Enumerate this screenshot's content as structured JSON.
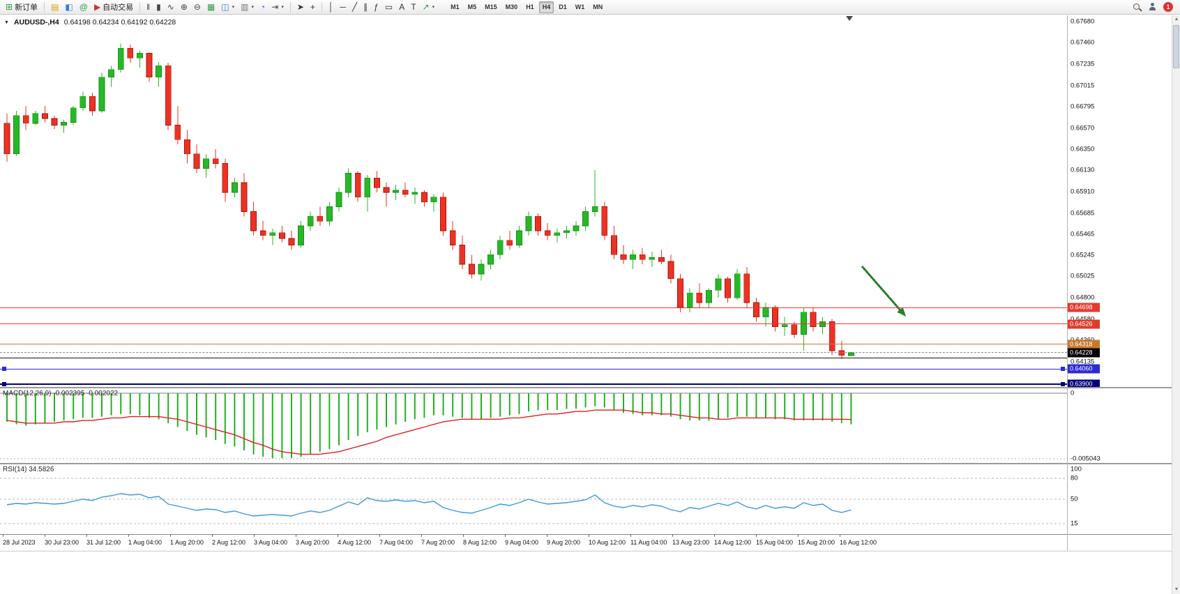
{
  "toolbar": {
    "badge_count": "1",
    "timeframes": [
      "M1",
      "M5",
      "M15",
      "M30",
      "H1",
      "H4",
      "D1",
      "W1",
      "MN"
    ],
    "active_timeframe": "H4",
    "buttons": [
      {
        "id": "new-order",
        "icon": "new-order-icon",
        "glyph": "⊞",
        "color": "#2f9e44",
        "label": "新订单"
      },
      {
        "sep": true
      },
      {
        "id": "market-watch",
        "icon": "market-watch-icon",
        "glyph": "▤",
        "color": "#d9a400"
      },
      {
        "id": "data-window",
        "icon": "data-window-icon",
        "glyph": "◧",
        "color": "#3a7bd5"
      },
      {
        "id": "navigator",
        "icon": "navigator-icon",
        "glyph": "@",
        "color": "#2f9e44"
      },
      {
        "id": "auto-trading",
        "icon": "auto-trading-icon",
        "glyph": "▶",
        "color": "#cc3333",
        "label": "自动交易"
      },
      {
        "sep": true
      },
      {
        "id": "bar-chart",
        "icon": "bar-chart-icon",
        "glyph": "‖",
        "color": "#444"
      },
      {
        "id": "candle-chart",
        "icon": "candlestick-chart-icon",
        "glyph": "▮",
        "color": "#444"
      },
      {
        "id": "line-chart",
        "icon": "line-chart-icon",
        "glyph": "∿",
        "color": "#444"
      },
      {
        "id": "zoom-in",
        "icon": "zoom-in-icon",
        "glyph": "⊕",
        "color": "#444"
      },
      {
        "id": "zoom-out",
        "icon": "zoom-out-icon",
        "glyph": "⊖",
        "color": "#444"
      },
      {
        "id": "tile-windows",
        "icon": "tile-windows-icon",
        "glyph": "▦",
        "color": "#2f9e44"
      },
      {
        "id": "new-chart",
        "icon": "new-chart-icon",
        "glyph": "◫",
        "color": "#3a7bd5",
        "dropdown": true
      },
      {
        "id": "profiles",
        "icon": "profiles-icon",
        "glyph": "▥",
        "color": "#777",
        "dropdown": true
      },
      {
        "id": "period-clock",
        "icon": "clock-icon",
        "glyph": "◔",
        "color": "#3a7bd5"
      },
      {
        "id": "chart-shift",
        "icon": "chart-shift-icon",
        "glyph": "⇥",
        "color": "#444",
        "dropdown": true
      },
      {
        "sep": true
      },
      {
        "id": "cursor",
        "icon": "cursor-arrow-icon",
        "glyph": "➤",
        "color": "#333"
      },
      {
        "id": "crosshair",
        "icon": "crosshair-icon",
        "glyph": "+",
        "color": "#333"
      },
      {
        "sep": true
      },
      {
        "id": "vertical-line",
        "icon": "vertical-line-icon",
        "glyph": "│",
        "color": "#333"
      },
      {
        "id": "horizontal-line",
        "icon": "horizontal-line-icon",
        "glyph": "─",
        "color": "#333"
      },
      {
        "id": "trendline",
        "icon": "trendline-icon",
        "glyph": "╱",
        "color": "#333"
      },
      {
        "id": "channel",
        "icon": "equidistant-channel-icon",
        "glyph": "∥",
        "color": "#333"
      },
      {
        "id": "fibonacci",
        "icon": "fibonacci-icon",
        "glyph": "ƒ",
        "color": "#333"
      },
      {
        "id": "shapes",
        "icon": "shapes-icon",
        "glyph": "▭",
        "color": "#333"
      },
      {
        "id": "text",
        "icon": "text-icon",
        "glyph": "A",
        "color": "#333"
      },
      {
        "id": "text-label",
        "icon": "text-label-icon",
        "glyph": "T",
        "color": "#333"
      },
      {
        "id": "arrow-objects",
        "icon": "arrow-objects-icon",
        "glyph": "↗",
        "color": "#2f9e44",
        "dropdown": true
      }
    ]
  },
  "icons": {
    "dropdown_triangle": "▼",
    "dropdown_small": "▾",
    "scroll_up": "▲",
    "scroll_down": "▼"
  },
  "chart": {
    "title_symbol": "AUDUSD-,H4",
    "ohlc_text": "0.64198 0.64234 0.64192 0.64228",
    "colors": {
      "up": "#27b827",
      "up_border": "#149114",
      "down": "#ec3224",
      "down_border": "#a61408",
      "macd": "#22b022",
      "signal": "#e02020",
      "rsi": "#3f98d8"
    }
  },
  "annotations": {
    "arrow_color": "#2e7d32"
  },
  "price_axis": {
    "labels": [
      "0.67680",
      "0.67460",
      "0.67235",
      "0.67015",
      "0.66795",
      "0.66570",
      "0.66350",
      "0.66130",
      "0.65910",
      "0.65685",
      "0.65465",
      "0.65245",
      "0.65025",
      "0.64800",
      "0.64580",
      "0.64360",
      "0.64135"
    ],
    "tags": [
      {
        "id": "resistance-1",
        "text": "0.64698",
        "price": 0.64698,
        "color": "#e23b2e"
      },
      {
        "id": "resistance-2",
        "text": "0.64526",
        "price": 0.64526,
        "color": "#e23b2e"
      },
      {
        "id": "pivot-orange",
        "text": "0.64318",
        "price": 0.64318,
        "color": "#c8782d"
      },
      {
        "id": "bid",
        "text": "0.64228",
        "price": 0.64228,
        "color": "#000000"
      },
      {
        "id": "support-1",
        "text": "0.64060",
        "price": 0.6406,
        "color": "#2b2bd4"
      },
      {
        "id": "support-2",
        "text": "0.63900",
        "price": 0.639,
        "color": "#00007a"
      }
    ]
  },
  "hlines": [
    {
      "id": "resistance-1",
      "price": 0.64698,
      "color": "#e23b2e",
      "style": "solid",
      "width": 1
    },
    {
      "id": "resistance-2",
      "price": 0.64526,
      "color": "#e23b2e",
      "style": "solid",
      "width": 1
    },
    {
      "id": "pivot-orange",
      "price": 0.64318,
      "color": "#c8782d",
      "style": "solid",
      "width": 1
    },
    {
      "id": "bid-line",
      "price": 0.64228,
      "color": "#8a8a8a",
      "style": "dashed",
      "width": 1
    },
    {
      "id": "black-line",
      "price": 0.6417,
      "color": "#151515",
      "style": "solid",
      "width": 1
    },
    {
      "id": "support-1",
      "price": 0.6406,
      "color": "#2b2bd4",
      "style": "solid",
      "width": 1,
      "handles": true
    },
    {
      "id": "support-2",
      "price": 0.639,
      "color": "#00007a",
      "style": "solid",
      "width": 2,
      "handles": true
    }
  ],
  "time_axis": [
    "28 Jul 2023",
    "30 Jul 23:00",
    "31 Jul 12:00",
    "1 Aug 04:00",
    "1 Aug 20:00",
    "2 Aug 12:00",
    "3 Aug 04:00",
    "3 Aug 20:00",
    "4 Aug 12:00",
    "7 Aug 04:00",
    "7 Aug 20:00",
    "8 Aug 12:00",
    "9 Aug 04:00",
    "9 Aug 20:00",
    "10 Aug 12:00",
    "11 Aug 04:00",
    "13 Aug 23:00",
    "14 Aug 12:00",
    "15 Aug 04:00",
    "15 Aug 20:00",
    "16 Aug 12:00"
  ],
  "chart_data": {
    "type": "candlestick",
    "symbol": "AUDUSD-",
    "timeframe": "H4",
    "visible_price_range": [
      0.639,
      0.6768
    ],
    "candles": [
      [
        0.6662,
        0.6672,
        0.6622,
        0.663
      ],
      [
        0.663,
        0.6675,
        0.6628,
        0.667
      ],
      [
        0.667,
        0.668,
        0.6655,
        0.6662
      ],
      [
        0.6662,
        0.6675,
        0.666,
        0.6672
      ],
      [
        0.6672,
        0.668,
        0.6663,
        0.6667
      ],
      [
        0.6667,
        0.667,
        0.6656,
        0.666
      ],
      [
        0.666,
        0.6666,
        0.6652,
        0.6663
      ],
      [
        0.6663,
        0.668,
        0.666,
        0.6678
      ],
      [
        0.6678,
        0.6695,
        0.6675,
        0.669
      ],
      [
        0.669,
        0.6694,
        0.667,
        0.6675
      ],
      [
        0.6675,
        0.6715,
        0.6673,
        0.671
      ],
      [
        0.671,
        0.6722,
        0.67,
        0.6718
      ],
      [
        0.6718,
        0.6745,
        0.6715,
        0.674
      ],
      [
        0.674,
        0.6744,
        0.6725,
        0.673
      ],
      [
        0.673,
        0.6738,
        0.672,
        0.6735
      ],
      [
        0.6735,
        0.6736,
        0.6705,
        0.671
      ],
      [
        0.671,
        0.6726,
        0.67,
        0.6722
      ],
      [
        0.6722,
        0.6725,
        0.6655,
        0.666
      ],
      [
        0.666,
        0.668,
        0.664,
        0.6645
      ],
      [
        0.6645,
        0.6655,
        0.662,
        0.663
      ],
      [
        0.663,
        0.664,
        0.661,
        0.6615
      ],
      [
        0.6615,
        0.663,
        0.6605,
        0.6625
      ],
      [
        0.6625,
        0.6635,
        0.6615,
        0.662
      ],
      [
        0.662,
        0.6625,
        0.658,
        0.659
      ],
      [
        0.659,
        0.6605,
        0.6585,
        0.66
      ],
      [
        0.66,
        0.661,
        0.6565,
        0.657
      ],
      [
        0.657,
        0.658,
        0.6545,
        0.655
      ],
      [
        0.655,
        0.656,
        0.654,
        0.6545
      ],
      [
        0.6545,
        0.6552,
        0.6535,
        0.6548
      ],
      [
        0.6548,
        0.6555,
        0.6538,
        0.6542
      ],
      [
        0.6542,
        0.655,
        0.653,
        0.6535
      ],
      [
        0.6535,
        0.656,
        0.6532,
        0.6555
      ],
      [
        0.6555,
        0.657,
        0.655,
        0.6565
      ],
      [
        0.6565,
        0.6575,
        0.6555,
        0.656
      ],
      [
        0.656,
        0.658,
        0.6555,
        0.6575
      ],
      [
        0.6575,
        0.6595,
        0.657,
        0.659
      ],
      [
        0.659,
        0.6615,
        0.6585,
        0.661
      ],
      [
        0.661,
        0.6612,
        0.658,
        0.6585
      ],
      [
        0.6585,
        0.6608,
        0.657,
        0.6605
      ],
      [
        0.6605,
        0.6612,
        0.659,
        0.6595
      ],
      [
        0.6595,
        0.66,
        0.6575,
        0.659
      ],
      [
        0.659,
        0.6598,
        0.6582,
        0.6592
      ],
      [
        0.6592,
        0.66,
        0.6585,
        0.6588
      ],
      [
        0.6588,
        0.6595,
        0.6578,
        0.659
      ],
      [
        0.659,
        0.6592,
        0.6575,
        0.658
      ],
      [
        0.658,
        0.6588,
        0.657,
        0.6585
      ],
      [
        0.6585,
        0.659,
        0.6545,
        0.655
      ],
      [
        0.655,
        0.656,
        0.653,
        0.6535
      ],
      [
        0.6535,
        0.6545,
        0.651,
        0.6515
      ],
      [
        0.6515,
        0.6525,
        0.65,
        0.6505
      ],
      [
        0.6505,
        0.652,
        0.6498,
        0.6515
      ],
      [
        0.6515,
        0.653,
        0.651,
        0.6525
      ],
      [
        0.6525,
        0.6545,
        0.652,
        0.654
      ],
      [
        0.654,
        0.655,
        0.653,
        0.6535
      ],
      [
        0.6535,
        0.6555,
        0.6532,
        0.655
      ],
      [
        0.655,
        0.657,
        0.6545,
        0.6565
      ],
      [
        0.6565,
        0.6568,
        0.6545,
        0.655
      ],
      [
        0.655,
        0.6558,
        0.654,
        0.6545
      ],
      [
        0.6545,
        0.6552,
        0.6538,
        0.6548
      ],
      [
        0.6548,
        0.6555,
        0.6542,
        0.655
      ],
      [
        0.655,
        0.656,
        0.6545,
        0.6555
      ],
      [
        0.6555,
        0.6575,
        0.655,
        0.657
      ],
      [
        0.657,
        0.6613,
        0.6565,
        0.6575
      ],
      [
        0.6575,
        0.658,
        0.654,
        0.6545
      ],
      [
        0.6545,
        0.6555,
        0.652,
        0.6525
      ],
      [
        0.6525,
        0.6535,
        0.6515,
        0.652
      ],
      [
        0.652,
        0.653,
        0.651,
        0.6525
      ],
      [
        0.6525,
        0.6532,
        0.6515,
        0.652
      ],
      [
        0.652,
        0.6528,
        0.6512,
        0.6522
      ],
      [
        0.6522,
        0.653,
        0.6515,
        0.6518
      ],
      [
        0.6518,
        0.6525,
        0.6495,
        0.65
      ],
      [
        0.65,
        0.6505,
        0.6465,
        0.647
      ],
      [
        0.647,
        0.649,
        0.6465,
        0.6485
      ],
      [
        0.6485,
        0.6495,
        0.647,
        0.6475
      ],
      [
        0.6475,
        0.649,
        0.647,
        0.6488
      ],
      [
        0.6488,
        0.6505,
        0.648,
        0.65
      ],
      [
        0.65,
        0.6502,
        0.6475,
        0.648
      ],
      [
        0.648,
        0.651,
        0.6478,
        0.6505
      ],
      [
        0.6505,
        0.6512,
        0.647,
        0.6475
      ],
      [
        0.6475,
        0.648,
        0.6455,
        0.646
      ],
      [
        0.646,
        0.6475,
        0.645,
        0.647
      ],
      [
        0.647,
        0.6472,
        0.6445,
        0.645
      ],
      [
        0.645,
        0.646,
        0.644,
        0.6452
      ],
      [
        0.6452,
        0.6455,
        0.6438,
        0.6442
      ],
      [
        0.6442,
        0.647,
        0.6425,
        0.6465
      ],
      [
        0.6465,
        0.647,
        0.6445,
        0.645
      ],
      [
        0.645,
        0.646,
        0.6442,
        0.6455
      ],
      [
        0.6455,
        0.6458,
        0.642,
        0.6425
      ],
      [
        0.6425,
        0.6435,
        0.6416,
        0.642
      ],
      [
        0.64198,
        0.64234,
        0.64192,
        0.64228
      ]
    ]
  },
  "macd": {
    "label": "MACD(12,26,9) -0.002395 -0.002022",
    "axis": [
      "0",
      "-0.005043"
    ],
    "histogram": [
      -0.0022,
      -0.0024,
      -0.0025,
      -0.0024,
      -0.0023,
      -0.0022,
      -0.0021,
      -0.002,
      -0.0019,
      -0.0019,
      -0.0018,
      -0.0017,
      -0.0016,
      -0.0016,
      -0.0017,
      -0.0019,
      -0.002,
      -0.0023,
      -0.0026,
      -0.0029,
      -0.0032,
      -0.0034,
      -0.0036,
      -0.0039,
      -0.0041,
      -0.0044,
      -0.0047,
      -0.0049,
      -0.005,
      -0.005,
      -0.005,
      -0.0049,
      -0.0047,
      -0.0045,
      -0.0043,
      -0.004,
      -0.0036,
      -0.0033,
      -0.003,
      -0.0028,
      -0.0026,
      -0.0024,
      -0.0022,
      -0.002,
      -0.0019,
      -0.0017,
      -0.0017,
      -0.0018,
      -0.0019,
      -0.002,
      -0.002,
      -0.0019,
      -0.0018,
      -0.0017,
      -0.0016,
      -0.0014,
      -0.0013,
      -0.0013,
      -0.0013,
      -0.0012,
      -0.0012,
      -0.0011,
      -0.001,
      -0.0011,
      -0.0013,
      -0.0015,
      -0.0016,
      -0.0017,
      -0.0017,
      -0.0017,
      -0.0018,
      -0.002,
      -0.0021,
      -0.0021,
      -0.0021,
      -0.002,
      -0.0019,
      -0.0018,
      -0.0018,
      -0.0019,
      -0.0019,
      -0.002,
      -0.002,
      -0.0021,
      -0.0021,
      -0.0021,
      -0.0021,
      -0.0022,
      -0.0023,
      -0.002395
    ],
    "signal": [
      -0.0021,
      -0.0022,
      -0.0023,
      -0.0023,
      -0.0023,
      -0.0023,
      -0.0022,
      -0.0022,
      -0.0021,
      -0.0021,
      -0.002,
      -0.0019,
      -0.0019,
      -0.0018,
      -0.0018,
      -0.0018,
      -0.0018,
      -0.0019,
      -0.002,
      -0.0022,
      -0.0024,
      -0.0026,
      -0.0028,
      -0.003,
      -0.0032,
      -0.0035,
      -0.0038,
      -0.004,
      -0.0043,
      -0.0045,
      -0.0046,
      -0.0047,
      -0.0047,
      -0.0047,
      -0.0046,
      -0.0045,
      -0.0043,
      -0.0041,
      -0.0039,
      -0.0037,
      -0.0034,
      -0.0032,
      -0.003,
      -0.0028,
      -0.0026,
      -0.0024,
      -0.0022,
      -0.0021,
      -0.002,
      -0.002,
      -0.002,
      -0.002,
      -0.002,
      -0.0019,
      -0.0019,
      -0.0018,
      -0.0017,
      -0.0016,
      -0.0016,
      -0.0015,
      -0.0014,
      -0.0014,
      -0.0013,
      -0.0013,
      -0.0013,
      -0.0013,
      -0.0014,
      -0.0015,
      -0.0015,
      -0.0016,
      -0.0016,
      -0.0017,
      -0.0018,
      -0.0019,
      -0.0019,
      -0.002,
      -0.002,
      -0.0019,
      -0.0019,
      -0.0019,
      -0.0019,
      -0.0019,
      -0.0019,
      -0.002,
      -0.002,
      -0.002,
      -0.002,
      -0.002,
      -0.002,
      -0.002022
    ]
  },
  "rsi": {
    "label": "RSI(14) 34.5826",
    "axis": [
      "100",
      "80",
      "50",
      "15"
    ],
    "levels": [
      80,
      50,
      15
    ],
    "values": [
      42,
      44,
      43,
      45,
      44,
      43,
      44,
      47,
      50,
      48,
      53,
      55,
      58,
      56,
      57,
      52,
      54,
      43,
      40,
      37,
      34,
      36,
      35,
      31,
      33,
      29,
      26,
      27,
      28,
      27,
      26,
      30,
      33,
      31,
      34,
      40,
      46,
      42,
      52,
      48,
      47,
      49,
      47,
      48,
      45,
      47,
      38,
      34,
      31,
      30,
      34,
      38,
      43,
      41,
      45,
      50,
      46,
      43,
      44,
      45,
      47,
      49,
      56,
      45,
      40,
      38,
      41,
      39,
      42,
      40,
      35,
      32,
      38,
      36,
      40,
      44,
      41,
      46,
      39,
      36,
      41,
      37,
      39,
      37,
      45,
      41,
      43,
      34,
      31,
      34.5826
    ]
  }
}
